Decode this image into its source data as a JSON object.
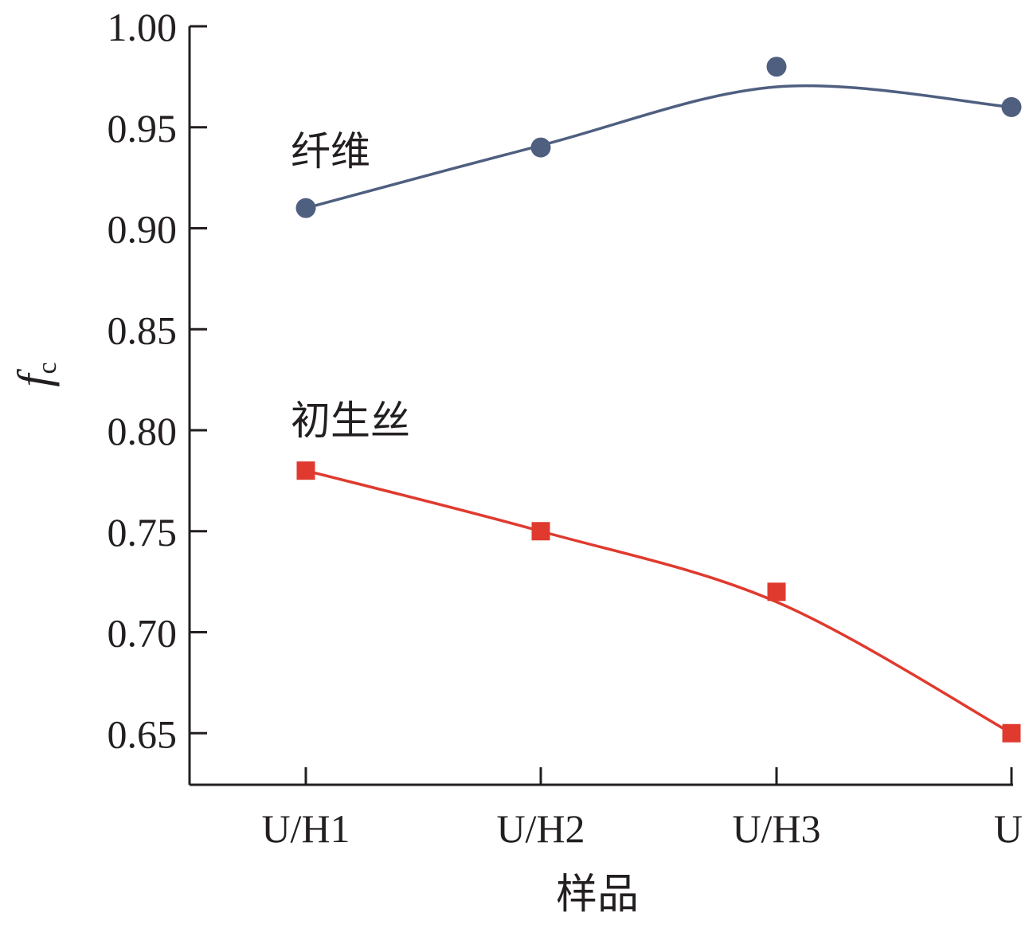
{
  "chart_data": {
    "type": "line",
    "categories": [
      "U/H1",
      "U/H2",
      "U/H3",
      "U"
    ],
    "xlabel": "样品",
    "ylabel": {
      "main": "f",
      "sub": "c"
    },
    "ylim": [
      0.63,
      1.0
    ],
    "yticks": [
      "1.00",
      "0.95",
      "0.90",
      "0.85",
      "0.80",
      "0.75",
      "0.70",
      "0.65"
    ],
    "grid": false,
    "series": [
      {
        "name": "纤维",
        "values": [
          0.91,
          0.94,
          0.98,
          0.96
        ],
        "color": "#4f5f80",
        "marker": "circle",
        "fit_curve": [
          0.91,
          0.941,
          0.97,
          0.96
        ]
      },
      {
        "name": "初生丝",
        "values": [
          0.78,
          0.75,
          0.72,
          0.65
        ],
        "color": "#e03a2e",
        "marker": "square",
        "fit_curve": [
          0.78,
          0.75,
          0.715,
          0.65
        ]
      }
    ]
  }
}
